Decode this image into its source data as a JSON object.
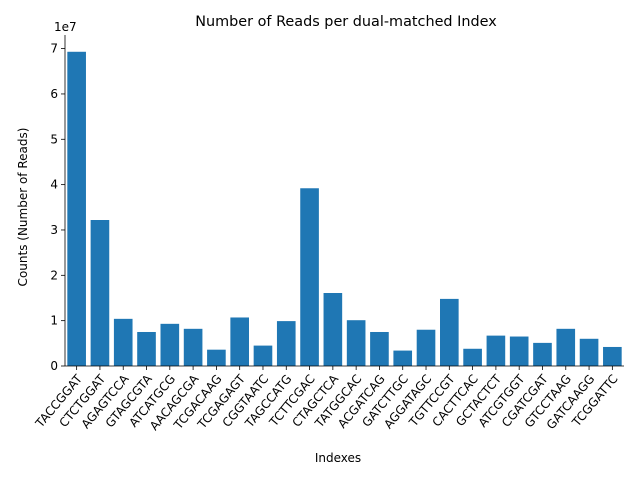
{
  "chart_data": {
    "type": "bar",
    "title": "Number of Reads per dual-matched Index",
    "xlabel": "Indexes",
    "ylabel": "Counts (Number of Reads)",
    "y_offset_label": "1e7",
    "y_scale": 10000000,
    "ylim": [
      0,
      73000000
    ],
    "yticks": [
      0,
      10000000,
      20000000,
      30000000,
      40000000,
      50000000,
      60000000,
      70000000
    ],
    "ytick_labels": [
      "0",
      "1",
      "2",
      "3",
      "4",
      "5",
      "6",
      "7"
    ],
    "grid": false,
    "legend": "none",
    "bar_color": "#1f77b4",
    "categories": [
      "TACCGGAT",
      "CTCTGGAT",
      "AGAGTCCA",
      "GTAGCGTA",
      "ATCATGCG",
      "AACAGCGA",
      "TCGACAAG",
      "TCGAGAGT",
      "CGGTAATC",
      "TAGCCATG",
      "TCTTCGAC",
      "CTAGCTCA",
      "TATGGCAC",
      "ACGATCAG",
      "GATCTTGC",
      "AGGATAGC",
      "TGTTCCGT",
      "CACTTCAC",
      "GCTACTCT",
      "ATCGTGGT",
      "CGATCGAT",
      "GTCCTAAG",
      "GATCAAGG",
      "TCGGATTC"
    ],
    "values": [
      69300000,
      32200000,
      10400000,
      7500000,
      9300000,
      8200000,
      3600000,
      10700000,
      4500000,
      9900000,
      39200000,
      16100000,
      10100000,
      7500000,
      3400000,
      8000000,
      14800000,
      3800000,
      6700000,
      6500000,
      5100000,
      8200000,
      6000000,
      4200000
    ]
  }
}
